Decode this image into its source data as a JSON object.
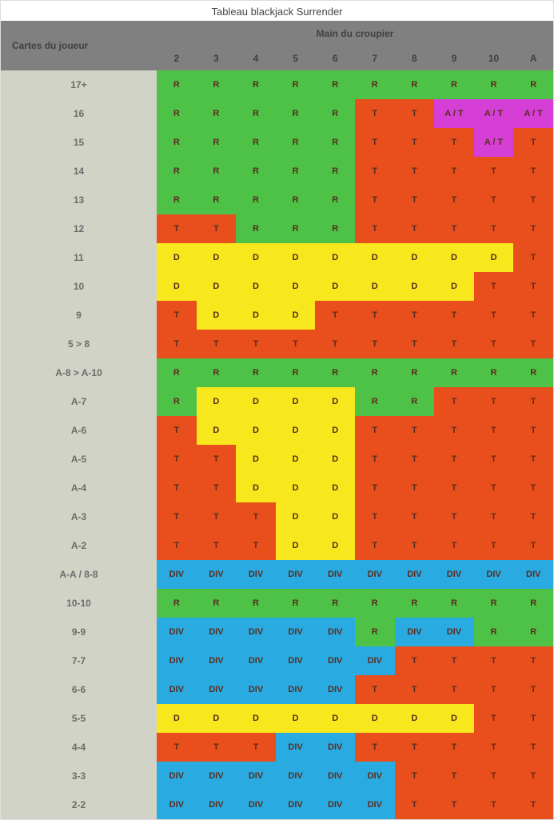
{
  "title": "Tableau blackjack Surrender",
  "header_player": "Cartes du joueur",
  "header_dealer": "Main du croupier",
  "dealer_cards": [
    "2",
    "3",
    "4",
    "5",
    "6",
    "7",
    "8",
    "9",
    "10",
    "A"
  ],
  "colors": {
    "R": "#4dc247",
    "T": "#e84f1c",
    "D": "#f8e71c",
    "DIV": "#29abe2",
    "AT": "#d63fd6",
    "row_head_bg": "#d2d3c7",
    "header_bg": "#808080",
    "text": "#5a2c1e"
  },
  "action_labels": {
    "R": "R",
    "T": "T",
    "D": "D",
    "DIV": "DIV",
    "AT": "A / T"
  },
  "rows": [
    {
      "label": "17+",
      "cells": [
        "R",
        "R",
        "R",
        "R",
        "R",
        "R",
        "R",
        "R",
        "R",
        "R"
      ]
    },
    {
      "label": "16",
      "cells": [
        "R",
        "R",
        "R",
        "R",
        "R",
        "T",
        "T",
        "AT",
        "AT",
        "AT"
      ]
    },
    {
      "label": "15",
      "cells": [
        "R",
        "R",
        "R",
        "R",
        "R",
        "T",
        "T",
        "T",
        "AT",
        "T"
      ]
    },
    {
      "label": "14",
      "cells": [
        "R",
        "R",
        "R",
        "R",
        "R",
        "T",
        "T",
        "T",
        "T",
        "T"
      ]
    },
    {
      "label": "13",
      "cells": [
        "R",
        "R",
        "R",
        "R",
        "R",
        "T",
        "T",
        "T",
        "T",
        "T"
      ]
    },
    {
      "label": "12",
      "cells": [
        "T",
        "T",
        "R",
        "R",
        "R",
        "T",
        "T",
        "T",
        "T",
        "T"
      ]
    },
    {
      "label": "11",
      "cells": [
        "D",
        "D",
        "D",
        "D",
        "D",
        "D",
        "D",
        "D",
        "D",
        "T"
      ]
    },
    {
      "label": "10",
      "cells": [
        "D",
        "D",
        "D",
        "D",
        "D",
        "D",
        "D",
        "D",
        "T",
        "T"
      ]
    },
    {
      "label": "9",
      "cells": [
        "T",
        "D",
        "D",
        "D",
        "T",
        "T",
        "T",
        "T",
        "T",
        "T"
      ]
    },
    {
      "label": "5 > 8",
      "cells": [
        "T",
        "T",
        "T",
        "T",
        "T",
        "T",
        "T",
        "T",
        "T",
        "T"
      ]
    },
    {
      "label": "A-8 > A-10",
      "cells": [
        "R",
        "R",
        "R",
        "R",
        "R",
        "R",
        "R",
        "R",
        "R",
        "R"
      ]
    },
    {
      "label": "A-7",
      "cells": [
        "R",
        "D",
        "D",
        "D",
        "D",
        "R",
        "R",
        "T",
        "T",
        "T"
      ]
    },
    {
      "label": "A-6",
      "cells": [
        "T",
        "D",
        "D",
        "D",
        "D",
        "T",
        "T",
        "T",
        "T",
        "T"
      ]
    },
    {
      "label": "A-5",
      "cells": [
        "T",
        "T",
        "D",
        "D",
        "D",
        "T",
        "T",
        "T",
        "T",
        "T"
      ]
    },
    {
      "label": "A-4",
      "cells": [
        "T",
        "T",
        "D",
        "D",
        "D",
        "T",
        "T",
        "T",
        "T",
        "T"
      ]
    },
    {
      "label": "A-3",
      "cells": [
        "T",
        "T",
        "T",
        "D",
        "D",
        "T",
        "T",
        "T",
        "T",
        "T"
      ]
    },
    {
      "label": "A-2",
      "cells": [
        "T",
        "T",
        "T",
        "D",
        "D",
        "T",
        "T",
        "T",
        "T",
        "T"
      ]
    },
    {
      "label": "A-A / 8-8",
      "cells": [
        "DIV",
        "DIV",
        "DIV",
        "DIV",
        "DIV",
        "DIV",
        "DIV",
        "DIV",
        "DIV",
        "DIV"
      ]
    },
    {
      "label": "10-10",
      "cells": [
        "R",
        "R",
        "R",
        "R",
        "R",
        "R",
        "R",
        "R",
        "R",
        "R"
      ]
    },
    {
      "label": "9-9",
      "cells": [
        "DIV",
        "DIV",
        "DIV",
        "DIV",
        "DIV",
        "R",
        "DIV",
        "DIV",
        "R",
        "R"
      ]
    },
    {
      "label": "7-7",
      "cells": [
        "DIV",
        "DIV",
        "DIV",
        "DIV",
        "DIV",
        "DIV",
        "T",
        "T",
        "T",
        "T"
      ]
    },
    {
      "label": "6-6",
      "cells": [
        "DIV",
        "DIV",
        "DIV",
        "DIV",
        "DIV",
        "T",
        "T",
        "T",
        "T",
        "T"
      ]
    },
    {
      "label": "5-5",
      "cells": [
        "D",
        "D",
        "D",
        "D",
        "D",
        "D",
        "D",
        "D",
        "T",
        "T"
      ]
    },
    {
      "label": "4-4",
      "cells": [
        "T",
        "T",
        "T",
        "DIV",
        "DIV",
        "T",
        "T",
        "T",
        "T",
        "T"
      ]
    },
    {
      "label": "3-3",
      "cells": [
        "DIV",
        "DIV",
        "DIV",
        "DIV",
        "DIV",
        "DIV",
        "T",
        "T",
        "T",
        "T"
      ]
    },
    {
      "label": "2-2",
      "cells": [
        "DIV",
        "DIV",
        "DIV",
        "DIV",
        "DIV",
        "DIV",
        "T",
        "T",
        "T",
        "T"
      ]
    }
  ]
}
